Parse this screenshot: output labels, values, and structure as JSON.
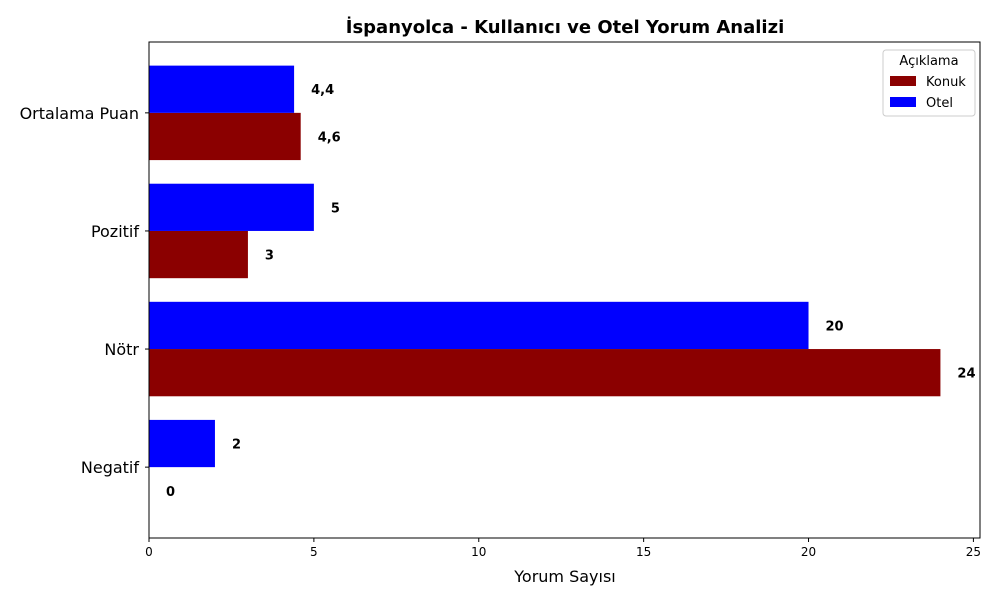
{
  "chart_data": {
    "type": "bar",
    "orientation": "horizontal",
    "title": "İspanyolca - Kullanıcı ve Otel Yorum Analizi",
    "xlabel": "Yorum Sayısı",
    "ylabel": "",
    "xlim": [
      0,
      25.2
    ],
    "xticks": [
      "0",
      "5",
      "10",
      "15",
      "20",
      "25"
    ],
    "categories": [
      "Negatif",
      "Nötr",
      "Pozitif",
      "Ortalama Puan"
    ],
    "series": [
      {
        "name": "Konuk",
        "color": "#8b0000",
        "values": [
          0,
          24,
          3,
          4.6
        ],
        "labels": [
          "0",
          "24",
          "3",
          "4,6"
        ]
      },
      {
        "name": "Otel",
        "color": "#0000ff",
        "values": [
          2,
          20,
          5,
          4.4
        ],
        "labels": [
          "2",
          "20",
          "5",
          "4,4"
        ]
      }
    ],
    "legend": {
      "title": "Açıklama",
      "position": "top-right"
    },
    "grid": false
  }
}
